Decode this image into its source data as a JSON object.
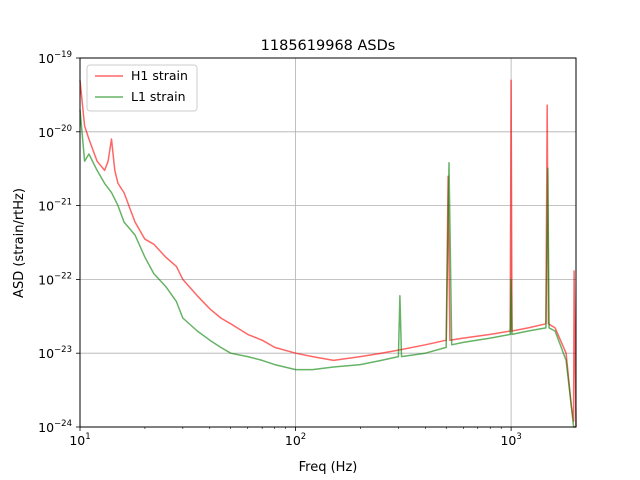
{
  "chart_data": {
    "type": "line",
    "title": "1185619968 ASDs",
    "xlabel": "Freq (Hz)",
    "ylabel": "ASD (strain/rtHz)",
    "x_scale": "log",
    "y_scale": "log",
    "xlim": [
      10,
      2000
    ],
    "ylim": [
      1e-24,
      1e-19
    ],
    "grid": true,
    "legend_position": "top-left",
    "x_ticks": [
      {
        "value": 10,
        "base": "10",
        "exp": "1"
      },
      {
        "value": 100,
        "base": "10",
        "exp": "2"
      },
      {
        "value": 1000,
        "base": "10",
        "exp": "3"
      }
    ],
    "y_ticks": [
      {
        "value": 1e-24,
        "base": "10",
        "exp": "−24"
      },
      {
        "value": 1e-23,
        "base": "10",
        "exp": "−23"
      },
      {
        "value": 1e-22,
        "base": "10",
        "exp": "−22"
      },
      {
        "value": 1e-21,
        "base": "10",
        "exp": "−21"
      },
      {
        "value": 1e-20,
        "base": "10",
        "exp": "−20"
      },
      {
        "value": 1e-19,
        "base": "10",
        "exp": "−19"
      }
    ],
    "series": [
      {
        "name": "H1 strain",
        "color": "#ff0000",
        "opacity": 0.6,
        "x": [
          10,
          10.5,
          11,
          12,
          13,
          13.5,
          14,
          14.5,
          15,
          16,
          18,
          20,
          22,
          25,
          28,
          30,
          35,
          40,
          45,
          50,
          60,
          70,
          80,
          100,
          120,
          150,
          200,
          250,
          300,
          400,
          500,
          510,
          520,
          600,
          800,
          990,
          1000,
          1010,
          1200,
          1450,
          1470,
          1490,
          1600,
          1800,
          1900,
          1950,
          1960,
          2000
        ],
        "y": [
          5e-20,
          1.2e-20,
          8e-21,
          4e-21,
          3e-21,
          4e-21,
          8e-21,
          3e-21,
          2e-21,
          1.5e-21,
          6e-22,
          3.5e-22,
          3e-22,
          2e-22,
          1.5e-22,
          1e-22,
          6e-23,
          4e-23,
          3e-23,
          2.5e-23,
          1.8e-23,
          1.5e-23,
          1.2e-23,
          1e-23,
          9e-24,
          8e-24,
          9e-24,
          1e-23,
          1.1e-23,
          1.3e-23,
          1.5e-23,
          2.5e-21,
          1.5e-23,
          1.6e-23,
          1.8e-23,
          2e-23,
          5e-20,
          2e-23,
          2.2e-23,
          2.5e-23,
          2.3e-20,
          2.5e-23,
          2.2e-23,
          1e-23,
          2e-24,
          1.2e-24,
          1.3e-22,
          1e-24
        ]
      },
      {
        "name": "L1 strain",
        "color": "#008000",
        "opacity": 0.6,
        "x": [
          10,
          10.5,
          11,
          12,
          13,
          14,
          15,
          16,
          18,
          20,
          22,
          25,
          28,
          30,
          35,
          40,
          45,
          50,
          60,
          70,
          80,
          100,
          120,
          150,
          200,
          250,
          300,
          305,
          310,
          400,
          500,
          515,
          530,
          600,
          800,
          990,
          1000,
          1010,
          1200,
          1450,
          1480,
          1500,
          1600,
          1800,
          1900,
          1950,
          2000
        ],
        "y": [
          2e-20,
          4e-21,
          5e-21,
          3e-21,
          2e-21,
          1.5e-21,
          1e-21,
          6e-22,
          4e-22,
          2e-22,
          1.2e-22,
          8e-23,
          5e-23,
          3e-23,
          2e-23,
          1.5e-23,
          1.2e-23,
          1e-23,
          9e-24,
          8e-24,
          7e-24,
          6e-24,
          6e-24,
          6.5e-24,
          7e-24,
          8e-24,
          9e-24,
          6e-23,
          9e-24,
          1e-23,
          1.2e-23,
          3.8e-21,
          1.3e-23,
          1.4e-23,
          1.6e-23,
          1.8e-23,
          1e-22,
          1.8e-23,
          2e-23,
          2.2e-23,
          3.2e-21,
          2.2e-23,
          2e-23,
          8e-24,
          2e-24,
          1e-24,
          1e-24
        ]
      }
    ]
  }
}
